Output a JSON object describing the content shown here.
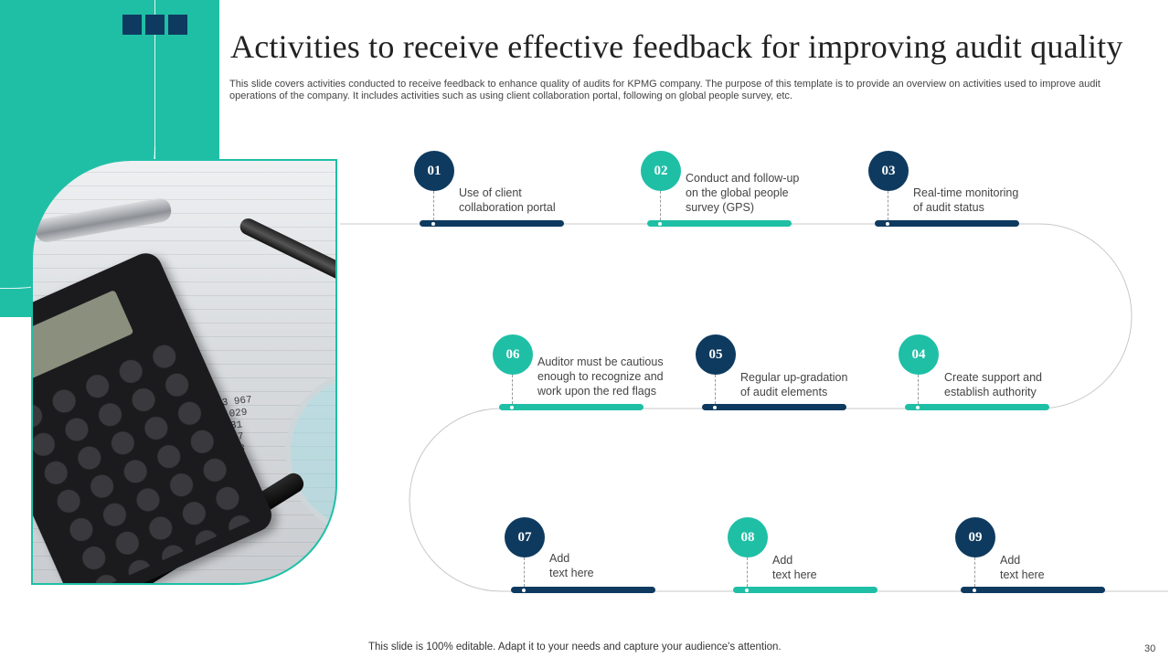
{
  "slide": {
    "title": "Activities to receive effective feedback for improving audit quality",
    "subtitle": "This slide covers activities conducted to receive feedback to enhance quality of audits for KPMG company. The purpose of this template is to provide an overview on activities used to improve audit operations of the company. It includes activities such as using client collaboration portal, following on global people survey, etc.",
    "footer": "This slide is 100% editable. Adapt it to your needs and capture your audience's attention.",
    "page_number": "30"
  },
  "colors": {
    "accent_teal": "#1fbfa6",
    "navy": "#0e3a5f"
  },
  "photo": {
    "figures": "339 970    373 967\n56 969    804 029\n817    1 296 731\n19     1 859 317\n5      2 499 808\n       3 227 076\n       4 050 935\n       28 331"
  },
  "steps": [
    {
      "number": "01",
      "text": "Use of client\ncollaboration portal",
      "color": "navy"
    },
    {
      "number": "02",
      "text": "Conduct and follow-up\non the global people\nsurvey (GPS)",
      "color": "teal"
    },
    {
      "number": "03",
      "text": "Real-time monitoring\nof audit status",
      "color": "navy"
    },
    {
      "number": "04",
      "text": "Create support and\nestablish authority",
      "color": "teal"
    },
    {
      "number": "05",
      "text": "Regular up-gradation\nof audit elements",
      "color": "navy"
    },
    {
      "number": "06",
      "text": "Auditor must be cautious\nenough to recognize and\nwork upon the red flags",
      "color": "teal"
    },
    {
      "number": "07",
      "text": "Add\ntext here",
      "color": "navy"
    },
    {
      "number": "08",
      "text": "Add\ntext here",
      "color": "teal"
    },
    {
      "number": "09",
      "text": "Add\ntext here",
      "color": "navy"
    }
  ]
}
